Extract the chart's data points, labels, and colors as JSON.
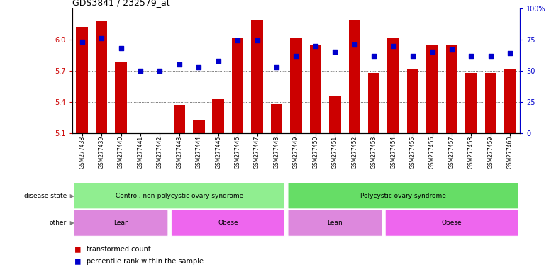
{
  "title": "GDS3841 / 232579_at",
  "samples": [
    "GSM277438",
    "GSM277439",
    "GSM277440",
    "GSM277441",
    "GSM277442",
    "GSM277443",
    "GSM277444",
    "GSM277445",
    "GSM277446",
    "GSM277447",
    "GSM277448",
    "GSM277449",
    "GSM277450",
    "GSM277451",
    "GSM277452",
    "GSM277453",
    "GSM277454",
    "GSM277455",
    "GSM277456",
    "GSM277457",
    "GSM277458",
    "GSM277459",
    "GSM277460"
  ],
  "transformed_count": [
    6.12,
    6.18,
    5.78,
    5.1,
    5.1,
    5.37,
    5.22,
    5.43,
    6.02,
    6.19,
    5.38,
    6.02,
    5.95,
    5.46,
    6.19,
    5.68,
    6.02,
    5.72,
    5.95,
    5.95,
    5.68,
    5.68,
    5.71
  ],
  "percentile_rank": [
    73,
    76,
    68,
    50,
    50,
    55,
    53,
    58,
    74,
    74,
    53,
    62,
    70,
    65,
    71,
    62,
    70,
    62,
    65,
    67,
    62,
    62,
    64
  ],
  "ylim_left": [
    5.1,
    6.3
  ],
  "ylim_right": [
    0,
    100
  ],
  "yticks_left": [
    5.1,
    5.4,
    5.7,
    6.0
  ],
  "yticks_right": [
    0,
    25,
    50,
    75,
    100
  ],
  "ytick_right_labels": [
    "0",
    "25",
    "50",
    "75",
    "100%"
  ],
  "bar_color": "#cc0000",
  "dot_color": "#0000cc",
  "disease_state_groups": [
    {
      "label": "Control, non-polycystic ovary syndrome",
      "start": 0,
      "end": 10,
      "color": "#90EE90"
    },
    {
      "label": "Polycystic ovary syndrome",
      "start": 11,
      "end": 22,
      "color": "#66DD66"
    }
  ],
  "other_groups": [
    {
      "label": "Lean",
      "start": 0,
      "end": 4,
      "color": "#DD88DD"
    },
    {
      "label": "Obese",
      "start": 5,
      "end": 10,
      "color": "#EE66EE"
    },
    {
      "label": "Lean",
      "start": 11,
      "end": 15,
      "color": "#DD88DD"
    },
    {
      "label": "Obese",
      "start": 16,
      "end": 22,
      "color": "#EE66EE"
    }
  ],
  "legend_items": [
    {
      "label": "transformed count",
      "color": "#cc0000"
    },
    {
      "label": "percentile rank within the sample",
      "color": "#0000cc"
    }
  ],
  "disease_label": "disease state",
  "other_label": "other",
  "background_color": "#ffffff",
  "axis_label_color_left": "#cc0000",
  "axis_label_color_right": "#0000cc"
}
